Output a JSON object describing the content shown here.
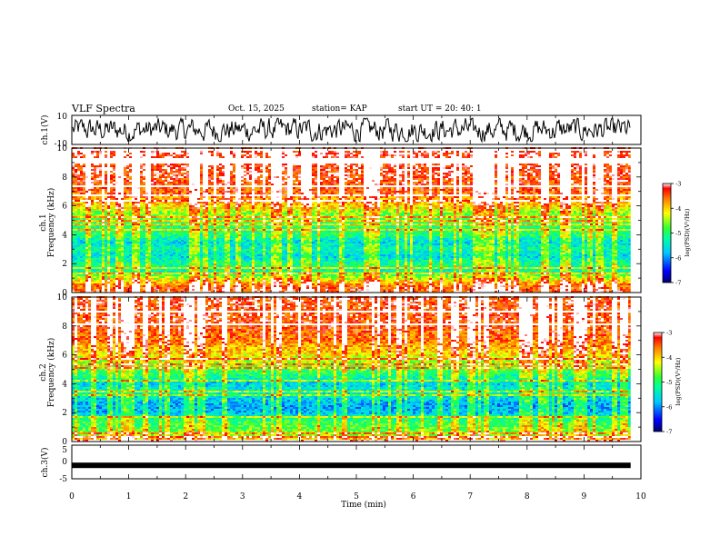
{
  "header": {
    "title": "VLF Spectra",
    "date": "Oct. 15, 2025",
    "station": "station= KAP",
    "start": "start  UT  =   20: 40: 1"
  },
  "chart_data": [
    {
      "type": "line",
      "panel": "ch1-waveform",
      "ylabel": "ch.1(V)",
      "ylim": [
        -10,
        10
      ],
      "yticks": [
        "10",
        "-10"
      ],
      "xlim": [
        0,
        10
      ],
      "data_end_min": 9.82,
      "description_values": {
        "amplitude_range_V": [
          -8,
          8
        ]
      }
    },
    {
      "type": "heatmap",
      "panel": "ch1-spectrogram",
      "ylabel": "Frequency (kHz)",
      "channel_label": "ch.1",
      "ylim": [
        0,
        10
      ],
      "yticks": [
        "0",
        "2",
        "4",
        "6",
        "8",
        "10"
      ],
      "xlim": [
        0,
        10
      ],
      "data_end_min": 9.82,
      "colorbar": {
        "label": "log(PSD)(V²/Hz)",
        "range": [
          -7,
          -3
        ],
        "ticks": [
          "-3",
          "-4",
          "-5",
          "-6",
          "-7"
        ]
      },
      "band_profile_kHz_logPSD": [
        [
          0,
          -3.3
        ],
        [
          0.5,
          -3.6
        ],
        [
          1,
          -4.4
        ],
        [
          1.5,
          -5.3
        ],
        [
          2,
          -5.1
        ],
        [
          2.5,
          -5.6
        ],
        [
          3,
          -5.3
        ],
        [
          3.5,
          -5.6
        ],
        [
          4,
          -5.0
        ],
        [
          4.5,
          -5.1
        ],
        [
          5,
          -4.8
        ],
        [
          5.5,
          -4.6
        ],
        [
          6,
          -4.0
        ],
        [
          7,
          -3.5
        ],
        [
          8,
          -3.3
        ],
        [
          10,
          -3.1
        ]
      ]
    },
    {
      "type": "heatmap",
      "panel": "ch2-spectrogram",
      "ylabel": "Frequency (kHz)",
      "channel_label": "ch.2",
      "ylim": [
        0,
        10
      ],
      "yticks": [
        "0",
        "2",
        "4",
        "6",
        "8",
        "10"
      ],
      "xlim": [
        0,
        10
      ],
      "data_end_min": 9.82,
      "colorbar": {
        "label": "log(PSD)(V²/Hz)",
        "range": [
          -7,
          -3
        ],
        "ticks": [
          "-3",
          "-4",
          "-5",
          "-6",
          "-7"
        ]
      },
      "band_profile_kHz_logPSD": [
        [
          0,
          -3.6
        ],
        [
          0.5,
          -4.6
        ],
        [
          1,
          -4.8
        ],
        [
          1.5,
          -5.0
        ],
        [
          2,
          -5.8
        ],
        [
          2.5,
          -5.9
        ],
        [
          3,
          -5.6
        ],
        [
          3.5,
          -5.4
        ],
        [
          4,
          -5.7
        ],
        [
          4.5,
          -5.2
        ],
        [
          5,
          -4.8
        ],
        [
          5.5,
          -4.5
        ],
        [
          6,
          -4.1
        ],
        [
          7,
          -3.6
        ],
        [
          8,
          -3.4
        ],
        [
          10,
          -3.3
        ]
      ]
    },
    {
      "type": "line",
      "panel": "ch3-waveform",
      "ylabel": "ch.3(V)",
      "ylim": [
        -5,
        5
      ],
      "yticks": [
        "5",
        "0",
        "-5"
      ],
      "xlim": [
        0,
        10
      ],
      "data_end_min": 9.82,
      "description_values": {
        "level_V": -1.0
      }
    }
  ],
  "xaxis": {
    "label": "Time (min)",
    "ticks": [
      "0",
      "1",
      "2",
      "3",
      "4",
      "5",
      "6",
      "7",
      "8",
      "9",
      "10"
    ]
  }
}
